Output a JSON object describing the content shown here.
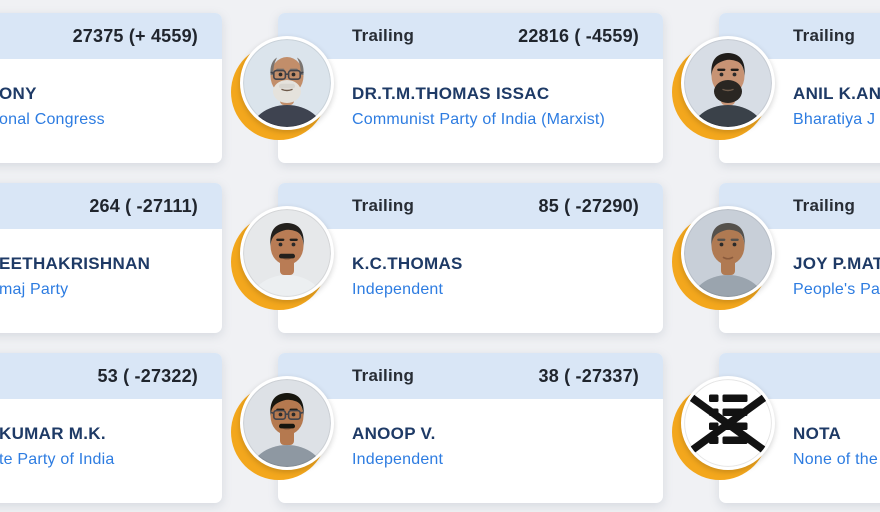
{
  "page": {
    "background": "#f0f1f4",
    "card_background": "#ffffff",
    "header_strip_color": "#d9e6f6",
    "status_text_color": "#282d35",
    "count_text_color": "#20252d",
    "name_text_color": "#1e3a66",
    "party_text_color": "#2d7ce1",
    "avatar_ring_color": "#f3a71d"
  },
  "cards": [
    {
      "status": "",
      "count": "27375 (+ 4559)",
      "name": "ONY",
      "party": "onal Congress",
      "avatar": null
    },
    {
      "status": "Trailing",
      "count": "22816 ( -4559)",
      "name": "DR.T.M.THOMAS ISSAC",
      "party": "Communist Party of India (Marxist)",
      "avatar": {
        "type": "photo",
        "bg": "#dbe4ec",
        "skin": "#c28e6a",
        "hair": "#7a7470",
        "bald": true,
        "beard": "#e5e2dc",
        "mustache": true,
        "mustache_color": "#d8d5cf",
        "glasses": true,
        "shirt": "#3e4350"
      }
    },
    {
      "status": "Trailing",
      "count": "",
      "name": "ANIL K.ANT",
      "party": "Bharatiya J",
      "avatar": {
        "type": "photo",
        "bg": "#d7dde5",
        "skin": "#c79374",
        "hair": "#201d1a",
        "bald": false,
        "beard": "#2a2622",
        "mustache": true,
        "mustache_color": "#2a2622",
        "glasses": false,
        "shirt": "#3a4149"
      }
    },
    {
      "status": "",
      "count": "264 ( -27111)",
      "name": "EETHAKRISHNAN",
      "party": "maj Party",
      "avatar": null
    },
    {
      "status": "Trailing",
      "count": "85 ( -27290)",
      "name": "K.C.THOMAS",
      "party": "Independent",
      "avatar": {
        "type": "photo",
        "bg": "#e6e8ea",
        "skin": "#b97c55",
        "hair": "#23201d",
        "bald": false,
        "beard": null,
        "mustache": true,
        "mustache_color": "#23201d",
        "glasses": false,
        "shirt": "#eceff1"
      }
    },
    {
      "status": "Trailing",
      "count": "",
      "name": "JOY P.MAT",
      "party": "People's Pa",
      "avatar": {
        "type": "photo",
        "bg": "#c8cfd8",
        "skin": "#b07a52",
        "hair": "#55514c",
        "bald": false,
        "beard": null,
        "mustache": false,
        "mustache_color": null,
        "glasses": false,
        "shirt": "#9aa4ae"
      }
    },
    {
      "status": "",
      "count": "53 ( -27322)",
      "name": "KUMAR M.K.",
      "party": "te Party of India",
      "avatar": null
    },
    {
      "status": "Trailing",
      "count": "38 ( -27337)",
      "name": "ANOOP V.",
      "party": "Independent",
      "avatar": {
        "type": "photo",
        "bg": "#dde1e6",
        "skin": "#b5794f",
        "hair": "#17160f",
        "bald": false,
        "beard": null,
        "mustache": true,
        "mustache_color": "#17160f",
        "glasses": true,
        "shirt": "#8e98a2"
      }
    },
    {
      "status": "",
      "count": "",
      "name": "NOTA",
      "party": "None of the",
      "avatar": {
        "type": "nota"
      }
    }
  ]
}
